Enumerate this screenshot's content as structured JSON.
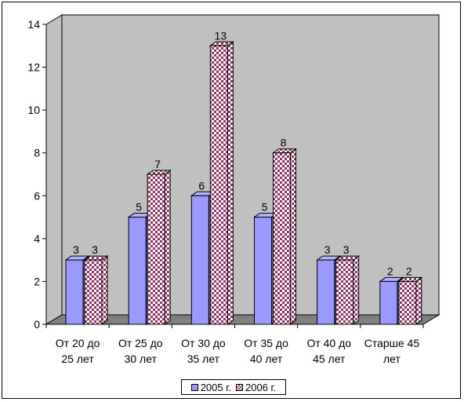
{
  "chart_data": {
    "type": "bar",
    "style": "3d-clustered-column",
    "categories": [
      [
        "От 20 до",
        "25 лет"
      ],
      [
        "От 25 до",
        "30 лет"
      ],
      [
        "От 30 до",
        "35 лет"
      ],
      [
        "От 35 до",
        "40 лет"
      ],
      [
        "От 40 до",
        "45 лет"
      ],
      [
        "Старше 45",
        "лет"
      ]
    ],
    "series": [
      {
        "name": "2005 г.",
        "values": [
          3,
          5,
          6,
          5,
          3,
          2
        ],
        "color": "#9999ff",
        "pattern": "solid"
      },
      {
        "name": "2006 г.",
        "values": [
          3,
          7,
          13,
          8,
          3,
          2
        ],
        "color": "#993366",
        "pattern": "checkerboard"
      }
    ],
    "ylim": [
      0,
      14
    ],
    "yticks": [
      0,
      2,
      4,
      6,
      8,
      10,
      12,
      14
    ],
    "grid": false,
    "wall_color": "#c0c0c0",
    "floor_color": "#808080",
    "data_labels": true,
    "legend_position": "bottom"
  }
}
